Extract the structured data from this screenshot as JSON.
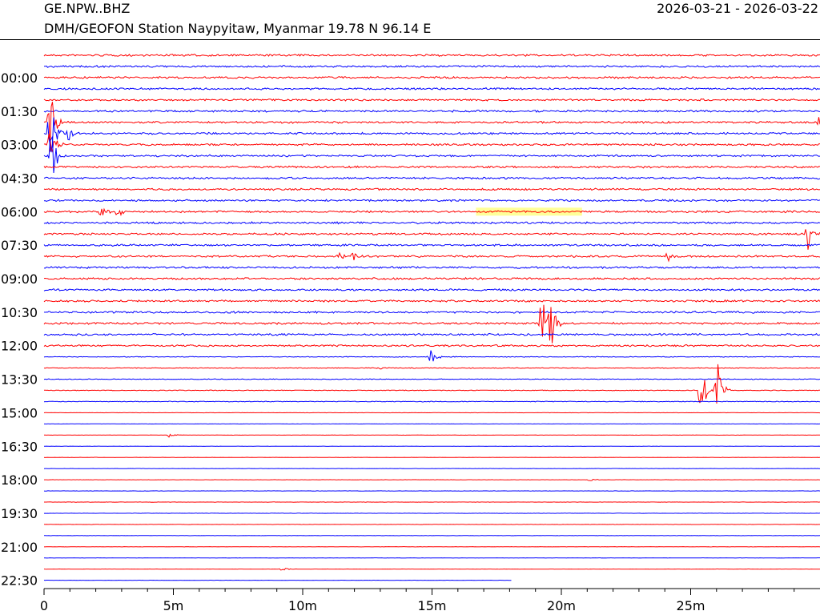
{
  "header": {
    "station": "GE.NPW..BHZ",
    "description": "DMH/GEOFON Station Naypyitaw, Myanmar  19.78 N 96.14 E",
    "date_range": "2026-03-21 - 2026-03-22"
  },
  "colors": {
    "trace_a": "#ff0000",
    "trace_b": "#0000ff",
    "highlight": "#ffff99",
    "axis": "#000000",
    "background": "#ffffff"
  },
  "chart_data": {
    "type": "line",
    "subtype": "helicorder",
    "trace_count": 48,
    "minutes_per_line": 30,
    "y_tick_labels": [
      "00:00",
      "01:30",
      "03:00",
      "04:30",
      "06:00",
      "07:30",
      "09:00",
      "10:30",
      "12:00",
      "13:30",
      "15:00",
      "16:30",
      "18:00",
      "19:30",
      "21:00",
      "22:30"
    ],
    "y_tick_line_index": [
      2,
      5,
      8,
      11,
      14,
      17,
      20,
      23,
      26,
      29,
      32,
      35,
      38,
      41,
      44,
      47
    ],
    "x_ticks": [
      {
        "minute": 0,
        "label": "0"
      },
      {
        "minute": 5,
        "label": "5m"
      },
      {
        "minute": 10,
        "label": "10m"
      },
      {
        "minute": 15,
        "label": "15m"
      },
      {
        "minute": 20,
        "label": "20m"
      },
      {
        "minute": 25,
        "label": "25m"
      }
    ],
    "x_minor_tick_step_minutes": 1,
    "xlim": [
      0,
      30
    ],
    "trace_colors_alternate": [
      "red",
      "blue"
    ],
    "last_trace_end_minute": 18.1,
    "events": [
      {
        "line": 6,
        "minute": 0.2,
        "amplitude": 0.9
      },
      {
        "line": 7,
        "minute": 0.2,
        "amplitude": 1.0
      },
      {
        "line": 8,
        "minute": 0.2,
        "amplitude": 0.9
      },
      {
        "line": 9,
        "minute": 0.25,
        "amplitude": 0.9
      },
      {
        "line": 7,
        "minute": 0.9,
        "amplitude": 0.2
      },
      {
        "line": 6,
        "minute": 30.0,
        "amplitude": 0.3
      },
      {
        "line": 14,
        "minute": 2.2,
        "amplitude": 0.15
      },
      {
        "line": 14,
        "minute": 2.8,
        "amplitude": 0.15
      },
      {
        "line": 16,
        "minute": 29.5,
        "amplitude": 0.45
      },
      {
        "line": 18,
        "minute": 11.4,
        "amplitude": 0.12
      },
      {
        "line": 18,
        "minute": 11.9,
        "amplitude": 0.12
      },
      {
        "line": 18,
        "minute": 24.1,
        "amplitude": 0.1
      },
      {
        "line": 23,
        "minute": 7.2,
        "amplitude": 0.06
      },
      {
        "line": 24,
        "minute": 19.2,
        "amplitude": 0.9
      },
      {
        "line": 24,
        "minute": 19.6,
        "amplitude": 0.9
      },
      {
        "line": 27,
        "minute": 14.9,
        "amplitude": 0.3
      },
      {
        "line": 28,
        "minute": 12.9,
        "amplitude": 0.05
      },
      {
        "line": 30,
        "minute": 25.4,
        "amplitude": 0.9
      },
      {
        "line": 30,
        "minute": 26.0,
        "amplitude": 0.9
      },
      {
        "line": 34,
        "minute": 4.8,
        "amplitude": 0.05
      },
      {
        "line": 38,
        "minute": 21.1,
        "amplitude": 0.05
      },
      {
        "line": 46,
        "minute": 9.2,
        "amplitude": 0.05
      }
    ],
    "highlight_segments": [
      {
        "line": 14,
        "start_minute": 16.7,
        "end_minute": 20.8
      }
    ]
  }
}
